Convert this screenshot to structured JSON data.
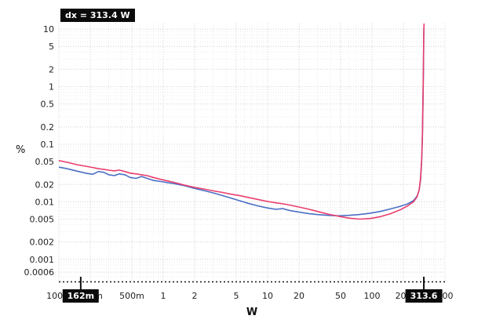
{
  "cursors": {
    "dx_readout": "dx = 313.4 W",
    "x1": {
      "value": 0.162,
      "label": "162m"
    },
    "x2": {
      "value": 313.6,
      "label": "313.6"
    }
  },
  "chart_data": {
    "type": "line",
    "title": "",
    "xlabel": "W",
    "ylabel": "%",
    "xscale": "log",
    "yscale": "log",
    "xlim": [
      0.1,
      500
    ],
    "ylim": [
      0.0004,
      12.5
    ],
    "grid": "log minor+major, dotted, on",
    "legend": "none",
    "x_ticks": [
      {
        "v": 0.1,
        "label": "100m"
      },
      {
        "v": 0.2,
        "label": "200m"
      },
      {
        "v": 0.5,
        "label": "500m"
      },
      {
        "v": 1,
        "label": "1"
      },
      {
        "v": 2,
        "label": "2"
      },
      {
        "v": 5,
        "label": "5"
      },
      {
        "v": 10,
        "label": "10"
      },
      {
        "v": 20,
        "label": "20"
      },
      {
        "v": 50,
        "label": "50"
      },
      {
        "v": 100,
        "label": "100"
      },
      {
        "v": 200,
        "label": "200"
      },
      {
        "v": 500,
        "label": "500"
      }
    ],
    "y_ticks": [
      {
        "v": 10,
        "label": "10"
      },
      {
        "v": 5,
        "label": "5"
      },
      {
        "v": 2,
        "label": "2"
      },
      {
        "v": 1,
        "label": "1"
      },
      {
        "v": 0.5,
        "label": "0.5"
      },
      {
        "v": 0.2,
        "label": "0.2"
      },
      {
        "v": 0.1,
        "label": "0.1"
      },
      {
        "v": 0.05,
        "label": "0.05"
      },
      {
        "v": 0.02,
        "label": "0.02"
      },
      {
        "v": 0.01,
        "label": "0.01"
      },
      {
        "v": 0.005,
        "label": "0.005"
      },
      {
        "v": 0.002,
        "label": "0.002"
      },
      {
        "v": 0.001,
        "label": "0.001"
      },
      {
        "v": 0.0006,
        "label": "0.0006"
      }
    ],
    "series": [
      {
        "name": "trace-blue",
        "color": "#4a6fc4",
        "points": [
          [
            0.1,
            0.04
          ],
          [
            0.12,
            0.0375
          ],
          [
            0.15,
            0.034
          ],
          [
            0.18,
            0.0315
          ],
          [
            0.21,
            0.03
          ],
          [
            0.24,
            0.0335
          ],
          [
            0.27,
            0.0325
          ],
          [
            0.3,
            0.0295
          ],
          [
            0.34,
            0.0285
          ],
          [
            0.38,
            0.0305
          ],
          [
            0.43,
            0.0295
          ],
          [
            0.48,
            0.0265
          ],
          [
            0.55,
            0.0255
          ],
          [
            0.62,
            0.0275
          ],
          [
            0.7,
            0.0255
          ],
          [
            0.8,
            0.0235
          ],
          [
            0.95,
            0.0225
          ],
          [
            1.1,
            0.0215
          ],
          [
            1.3,
            0.0205
          ],
          [
            1.6,
            0.019
          ],
          [
            2.0,
            0.017
          ],
          [
            2.5,
            0.0155
          ],
          [
            3.0,
            0.0143
          ],
          [
            3.7,
            0.0128
          ],
          [
            4.5,
            0.0115
          ],
          [
            5.5,
            0.0103
          ],
          [
            6.5,
            0.0094
          ],
          [
            8,
            0.0085
          ],
          [
            10,
            0.0078
          ],
          [
            12,
            0.0074
          ],
          [
            14,
            0.0076
          ],
          [
            16,
            0.0071
          ],
          [
            20,
            0.0066
          ],
          [
            25,
            0.0062
          ],
          [
            30,
            0.006
          ],
          [
            38,
            0.0058
          ],
          [
            48,
            0.0057
          ],
          [
            60,
            0.0058
          ],
          [
            75,
            0.006
          ],
          [
            95,
            0.0063
          ],
          [
            120,
            0.0068
          ],
          [
            150,
            0.0075
          ],
          [
            185,
            0.0083
          ],
          [
            220,
            0.0092
          ],
          [
            250,
            0.0105
          ],
          [
            270,
            0.0125
          ],
          [
            283,
            0.016
          ],
          [
            292,
            0.024
          ],
          [
            299,
            0.05
          ],
          [
            304,
            0.14
          ],
          [
            308,
            0.55
          ],
          [
            311,
            2.2
          ],
          [
            313,
            6.5
          ],
          [
            314.5,
            10.5
          ]
        ]
      },
      {
        "name": "trace-red",
        "color": "#ea3d6e",
        "points": [
          [
            0.1,
            0.052
          ],
          [
            0.12,
            0.0485
          ],
          [
            0.15,
            0.044
          ],
          [
            0.18,
            0.0415
          ],
          [
            0.21,
            0.0395
          ],
          [
            0.24,
            0.0375
          ],
          [
            0.27,
            0.0365
          ],
          [
            0.3,
            0.0355
          ],
          [
            0.34,
            0.0345
          ],
          [
            0.38,
            0.0355
          ],
          [
            0.43,
            0.0335
          ],
          [
            0.48,
            0.0315
          ],
          [
            0.55,
            0.0305
          ],
          [
            0.62,
            0.0295
          ],
          [
            0.7,
            0.0285
          ],
          [
            0.8,
            0.0265
          ],
          [
            0.95,
            0.0245
          ],
          [
            1.1,
            0.023
          ],
          [
            1.3,
            0.0215
          ],
          [
            1.6,
            0.0195
          ],
          [
            2.0,
            0.0178
          ],
          [
            2.5,
            0.0165
          ],
          [
            3.0,
            0.0155
          ],
          [
            3.7,
            0.0145
          ],
          [
            4.5,
            0.0135
          ],
          [
            5.5,
            0.0127
          ],
          [
            6.5,
            0.0119
          ],
          [
            8,
            0.011
          ],
          [
            10,
            0.0101
          ],
          [
            12,
            0.0096
          ],
          [
            14,
            0.0092
          ],
          [
            16,
            0.0088
          ],
          [
            20,
            0.0081
          ],
          [
            25,
            0.0074
          ],
          [
            30,
            0.0068
          ],
          [
            38,
            0.0061
          ],
          [
            48,
            0.0056
          ],
          [
            60,
            0.0052
          ],
          [
            75,
            0.005
          ],
          [
            95,
            0.0051
          ],
          [
            120,
            0.0055
          ],
          [
            150,
            0.0062
          ],
          [
            185,
            0.0072
          ],
          [
            220,
            0.0085
          ],
          [
            250,
            0.01
          ],
          [
            270,
            0.0122
          ],
          [
            283,
            0.016
          ],
          [
            292,
            0.026
          ],
          [
            299,
            0.055
          ],
          [
            304,
            0.16
          ],
          [
            308,
            0.65
          ],
          [
            311,
            2.6
          ],
          [
            313,
            7.5
          ],
          [
            315,
            12.3
          ]
        ]
      }
    ]
  },
  "colors": {
    "trace_blue": "#4a6fc4",
    "trace_red": "#ea3d6e",
    "grid_minor": "#ececec",
    "grid_major": "#d8d0d2",
    "cursor": "#111111",
    "tick_text": "#222222",
    "readout_bg": "#0b0b0b",
    "readout_fg": "#ffffff"
  }
}
